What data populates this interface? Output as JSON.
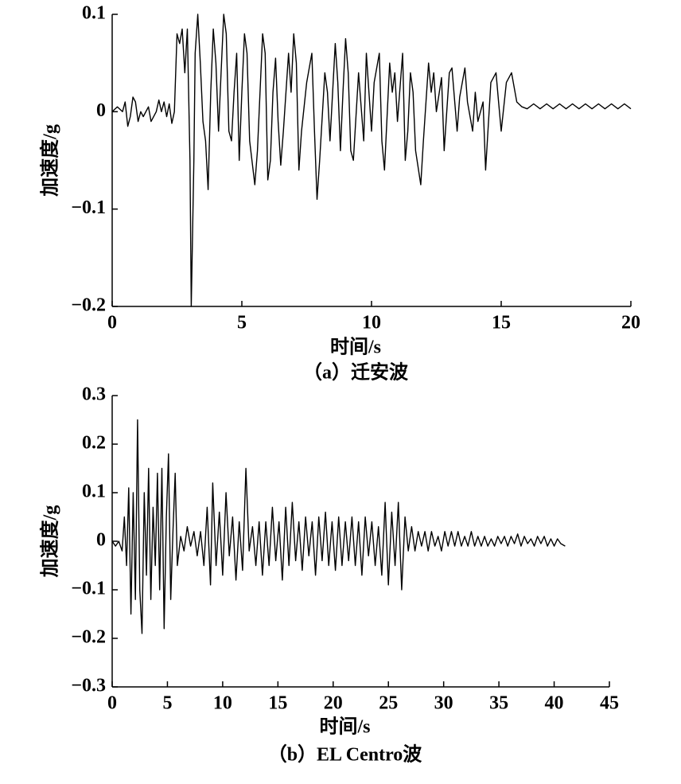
{
  "chart_data": [
    {
      "type": "line",
      "ylabel": "加速度/g",
      "xlabel": "时间/s",
      "caption": "（a）迁安波",
      "color": "#000000",
      "xlim": [
        0,
        20
      ],
      "xticks": [
        0,
        5,
        10,
        15,
        20
      ],
      "ylim": [
        -0.2,
        0.1
      ],
      "yticks": [
        {
          "value": -0.2,
          "label": "−0.2"
        },
        {
          "value": -0.1,
          "label": "−0.1"
        },
        0,
        0.1
      ],
      "x": [
        0,
        0.2,
        0.4,
        0.5,
        0.6,
        0.7,
        0.8,
        0.9,
        1.0,
        1.1,
        1.2,
        1.4,
        1.5,
        1.7,
        1.8,
        1.9,
        2.0,
        2.1,
        2.2,
        2.3,
        2.4,
        2.5,
        2.6,
        2.7,
        2.8,
        2.9,
        3.0,
        3.05,
        3.15,
        3.2,
        3.3,
        3.4,
        3.5,
        3.6,
        3.7,
        3.8,
        3.9,
        4.0,
        4.1,
        4.2,
        4.3,
        4.4,
        4.5,
        4.6,
        4.7,
        4.8,
        4.9,
        5.0,
        5.1,
        5.2,
        5.3,
        5.5,
        5.6,
        5.8,
        5.9,
        6.0,
        6.1,
        6.2,
        6.3,
        6.4,
        6.5,
        6.6,
        6.8,
        6.9,
        7.0,
        7.1,
        7.2,
        7.3,
        7.5,
        7.7,
        7.8,
        7.9,
        8.0,
        8.2,
        8.3,
        8.4,
        8.6,
        8.7,
        8.8,
        8.9,
        9.0,
        9.1,
        9.2,
        9.3,
        9.5,
        9.7,
        9.8,
        10.0,
        10.1,
        10.3,
        10.4,
        10.5,
        10.7,
        10.8,
        10.9,
        11.0,
        11.2,
        11.3,
        11.4,
        11.5,
        11.6,
        11.7,
        11.9,
        12.0,
        12.2,
        12.3,
        12.4,
        12.5,
        12.7,
        12.8,
        13.0,
        13.1,
        13.3,
        13.4,
        13.6,
        13.7,
        13.9,
        14.0,
        14.1,
        14.3,
        14.4,
        14.6,
        14.8,
        14.9,
        15.0,
        15.2,
        15.4,
        15.6,
        15.8,
        16.0,
        16.25,
        16.5,
        16.75,
        17.0,
        17.25,
        17.5,
        17.75,
        18.0,
        18.25,
        18.5,
        18.75,
        19.0,
        19.25,
        19.5,
        19.75,
        20.0
      ],
      "values": [
        0,
        0.005,
        0,
        0.01,
        -0.015,
        -0.005,
        0.015,
        0.01,
        -0.01,
        0,
        -0.005,
        0.005,
        -0.01,
        0,
        0.012,
        0,
        0.01,
        -0.005,
        0.008,
        -0.012,
        0,
        0.08,
        0.07,
        0.085,
        0.04,
        0.085,
        -0.05,
        -0.2,
        -0.05,
        0.06,
        0.1,
        0.05,
        -0.01,
        -0.03,
        -0.08,
        0.02,
        0.085,
        0.05,
        -0.02,
        0.04,
        0.1,
        0.08,
        -0.02,
        -0.03,
        0.02,
        0.06,
        -0.05,
        0.02,
        0.08,
        0.06,
        -0.03,
        -0.075,
        -0.04,
        0.08,
        0.06,
        -0.07,
        -0.05,
        0.02,
        0.055,
        -0.01,
        -0.055,
        -0.02,
        0.06,
        0.02,
        0.08,
        0.05,
        -0.06,
        -0.02,
        0.03,
        0.06,
        -0.02,
        -0.09,
        -0.05,
        0.04,
        0.02,
        -0.03,
        0.07,
        0.03,
        -0.04,
        0.02,
        0.075,
        0.04,
        -0.04,
        -0.05,
        0.04,
        -0.03,
        0.06,
        -0.02,
        0.03,
        0.06,
        -0.03,
        -0.06,
        0.05,
        0.02,
        0.04,
        -0.01,
        0.06,
        -0.05,
        -0.02,
        0.04,
        0.02,
        -0.04,
        -0.075,
        -0.03,
        0.05,
        0.02,
        0.04,
        0,
        0.035,
        -0.04,
        0.04,
        0.045,
        -0.02,
        0.015,
        0.045,
        0.01,
        -0.02,
        0.02,
        -0.01,
        0.01,
        -0.06,
        0.03,
        0.04,
        0.01,
        -0.02,
        0.03,
        0.04,
        0.01,
        0.005,
        0.003,
        0.008,
        0.003,
        0.008,
        0.003,
        0.008,
        0.003,
        0.008,
        0.003,
        0.008,
        0.003,
        0.008,
        0.003,
        0.008,
        0.003,
        0.008,
        0.003
      ]
    },
    {
      "type": "line",
      "ylabel": "加速度/g",
      "xlabel": "时间/s",
      "caption": "（b）EL Centro波",
      "color": "#000000",
      "xlim": [
        0,
        45
      ],
      "xticks": [
        0,
        5,
        10,
        15,
        20,
        25,
        30,
        35,
        40,
        45
      ],
      "ylim": [
        -0.3,
        0.3
      ],
      "yticks": [
        {
          "value": -0.3,
          "label": "−0.3"
        },
        {
          "value": -0.2,
          "label": "−0.2"
        },
        {
          "value": -0.1,
          "label": "−0.1"
        },
        0,
        0.1,
        0.2,
        0.3
      ],
      "x": [
        0,
        0.3,
        0.6,
        0.9,
        1.1,
        1.3,
        1.5,
        1.7,
        1.9,
        2.1,
        2.3,
        2.5,
        2.7,
        2.9,
        3.1,
        3.3,
        3.5,
        3.7,
        3.9,
        4.1,
        4.3,
        4.5,
        4.7,
        4.9,
        5.1,
        5.3,
        5.5,
        5.7,
        5.9,
        6.2,
        6.5,
        6.8,
        7.1,
        7.4,
        7.7,
        8.0,
        8.3,
        8.6,
        8.9,
        9.1,
        9.4,
        9.7,
        10.0,
        10.3,
        10.6,
        10.9,
        11.2,
        11.5,
        11.8,
        12.1,
        12.4,
        12.7,
        13.0,
        13.3,
        13.6,
        13.9,
        14.2,
        14.5,
        14.8,
        15.1,
        15.4,
        15.7,
        16.0,
        16.3,
        16.6,
        16.9,
        17.2,
        17.5,
        17.8,
        18.1,
        18.4,
        18.7,
        19.0,
        19.3,
        19.6,
        19.9,
        20.2,
        20.5,
        20.8,
        21.1,
        21.4,
        21.7,
        22.0,
        22.3,
        22.6,
        22.9,
        23.2,
        23.5,
        23.8,
        24.1,
        24.4,
        24.7,
        25.0,
        25.3,
        25.6,
        25.9,
        26.2,
        26.5,
        26.8,
        27.1,
        27.4,
        27.7,
        28.0,
        28.3,
        28.6,
        28.9,
        29.2,
        29.5,
        29.8,
        30.1,
        30.4,
        30.7,
        31.0,
        31.3,
        31.6,
        31.9,
        32.2,
        32.5,
        32.8,
        33.1,
        33.4,
        33.7,
        34.0,
        34.3,
        34.6,
        34.9,
        35.2,
        35.5,
        35.8,
        36.1,
        36.4,
        36.7,
        37.0,
        37.3,
        37.6,
        37.9,
        38.2,
        38.5,
        38.8,
        39.1,
        39.4,
        39.7,
        40.0,
        40.3,
        40.6,
        41.0
      ],
      "values": [
        0,
        -0.01,
        0,
        -0.02,
        0.05,
        -0.05,
        0.11,
        -0.15,
        0.1,
        -0.12,
        0.25,
        -0.1,
        -0.19,
        0.1,
        -0.07,
        0.15,
        -0.12,
        0.07,
        -0.05,
        0.14,
        -0.1,
        0.15,
        -0.18,
        0.05,
        0.18,
        -0.12,
        0.02,
        0.14,
        -0.05,
        0.01,
        -0.02,
        0.03,
        -0.01,
        0.02,
        -0.03,
        0.02,
        -0.05,
        0.07,
        -0.09,
        0.12,
        -0.05,
        0.06,
        -0.07,
        0.1,
        -0.03,
        0.05,
        -0.08,
        0.04,
        -0.06,
        0.15,
        -0.02,
        0.03,
        -0.05,
        0.04,
        -0.07,
        0.04,
        -0.05,
        0.07,
        -0.04,
        0.04,
        -0.08,
        0.07,
        -0.05,
        0.08,
        -0.04,
        0.04,
        -0.06,
        0.05,
        -0.03,
        0.04,
        -0.07,
        0.05,
        -0.04,
        0.06,
        -0.05,
        0.04,
        -0.06,
        0.05,
        -0.05,
        0.04,
        -0.04,
        0.05,
        -0.05,
        0.04,
        -0.07,
        0.05,
        -0.03,
        0.04,
        -0.05,
        0.03,
        -0.07,
        0.08,
        -0.09,
        0.06,
        -0.05,
        0.08,
        -0.1,
        0.05,
        -0.02,
        0.03,
        -0.02,
        0.02,
        -0.01,
        0.02,
        -0.02,
        0.02,
        -0.01,
        0.01,
        -0.02,
        0.02,
        -0.01,
        0.02,
        -0.01,
        0.02,
        -0.01,
        0.01,
        -0.01,
        0.02,
        -0.01,
        0.01,
        -0.01,
        0.01,
        -0.01,
        0.005,
        -0.01,
        0.01,
        -0.005,
        0.01,
        -0.01,
        0.01,
        -0.005,
        0.015,
        -0.01,
        0.01,
        -0.005,
        0.005,
        -0.01,
        0.01,
        -0.005,
        0.01,
        -0.01,
        0.005,
        -0.01,
        0.005,
        -0.005,
        -0.01
      ]
    }
  ]
}
